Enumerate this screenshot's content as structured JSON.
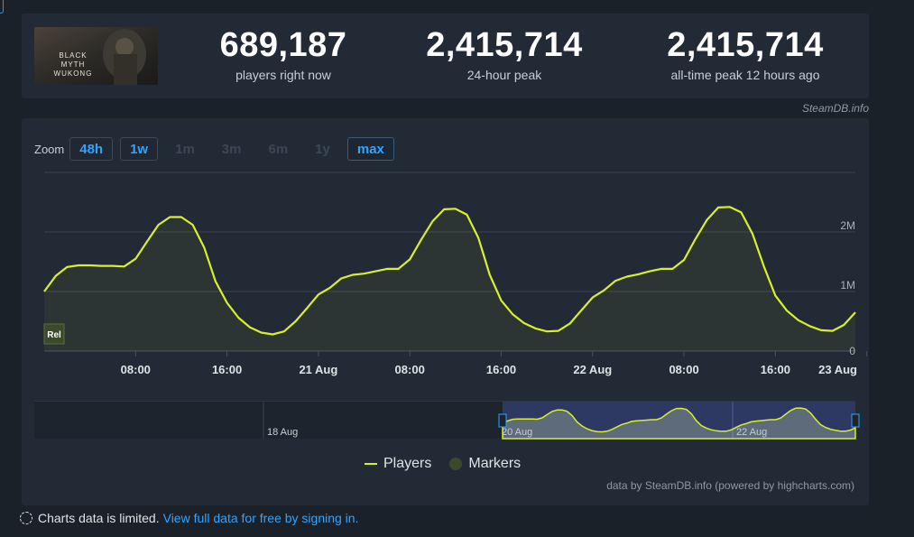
{
  "header_stats": {
    "game_art_text": "BLACK MYTH WUKONG",
    "current": {
      "value": "689,187",
      "label": "players right now"
    },
    "peak24": {
      "value": "2,415,714",
      "label": "24-hour peak"
    },
    "alltime": {
      "value": "2,415,714",
      "label": "all-time peak 12 hours ago"
    },
    "credit": "SteamDB.info"
  },
  "zoom": {
    "label": "Zoom",
    "buttons": [
      {
        "label": "48h",
        "state": "active"
      },
      {
        "label": "1w",
        "state": "active"
      },
      {
        "label": "1m",
        "state": "disabled"
      },
      {
        "label": "3m",
        "state": "disabled"
      },
      {
        "label": "6m",
        "state": "disabled"
      },
      {
        "label": "1y",
        "state": "disabled"
      },
      {
        "label": "max",
        "state": "selected"
      }
    ]
  },
  "chart_data": {
    "type": "line",
    "title": "",
    "xlabel": "",
    "ylabel": "",
    "x_ticks": [
      "08:00",
      "16:00",
      "21 Aug",
      "08:00",
      "16:00",
      "22 Aug",
      "08:00",
      "16:00",
      "23 Aug"
    ],
    "y_ticks": [
      "0",
      "1M",
      "2M"
    ],
    "ylim": [
      0,
      3000000
    ],
    "grid": true,
    "marker_label": "Rel",
    "series": [
      {
        "name": "Players",
        "color": "#d7f02e",
        "x_hours_from_aug20_00": [
          0,
          1,
          2,
          3,
          4,
          5,
          6,
          7,
          8,
          9,
          10,
          11,
          12,
          13,
          14,
          15,
          16,
          17,
          18,
          19,
          20,
          21,
          22,
          23,
          24,
          25,
          26,
          27,
          28,
          29,
          30,
          31,
          32,
          33,
          34,
          35,
          36,
          37,
          38,
          39,
          40,
          41,
          42,
          43,
          44,
          45,
          46,
          47,
          48,
          49,
          50,
          51,
          52,
          53,
          54,
          55,
          56,
          57,
          58,
          59,
          60,
          61,
          62,
          63,
          64,
          65,
          66,
          67,
          68,
          69,
          70,
          71
        ],
        "values": [
          1000000,
          1260000,
          1410000,
          1440000,
          1440000,
          1430000,
          1430000,
          1420000,
          1550000,
          1840000,
          2120000,
          2250000,
          2250000,
          2120000,
          1740000,
          1170000,
          810000,
          560000,
          400000,
          310000,
          280000,
          330000,
          500000,
          720000,
          950000,
          1060000,
          1220000,
          1280000,
          1300000,
          1340000,
          1380000,
          1380000,
          1540000,
          1870000,
          2180000,
          2380000,
          2390000,
          2290000,
          1900000,
          1280000,
          850000,
          620000,
          470000,
          380000,
          330000,
          340000,
          460000,
          680000,
          900000,
          1020000,
          1180000,
          1250000,
          1290000,
          1340000,
          1380000,
          1380000,
          1530000,
          1880000,
          2200000,
          2410000,
          2420000,
          2330000,
          1970000,
          1420000,
          930000,
          680000,
          520000,
          420000,
          350000,
          340000,
          440000,
          650000
        ]
      },
      {
        "name": "Markers",
        "color": "#3b4a2b"
      }
    ]
  },
  "navigator": {
    "labels": [
      "18 Aug",
      "20 Aug",
      "22 Aug"
    ]
  },
  "legend": [
    "Players",
    "Markers"
  ],
  "chart_credit": "data by SteamDB.info (powered by highcharts.com)",
  "footer": {
    "limited_text": "Charts data is limited.",
    "link_text": "View full data for free by signing in."
  }
}
